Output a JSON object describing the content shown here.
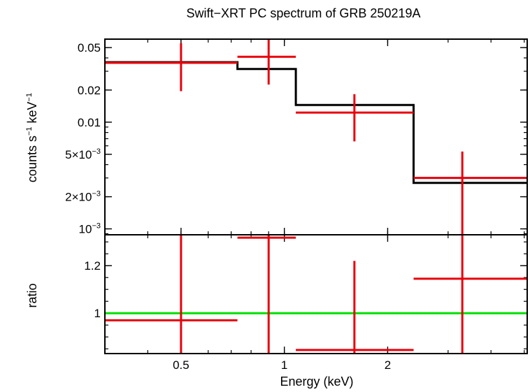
{
  "chart_data": {
    "title": "Swift−XRT PC spectrum of GRB 250219A",
    "xlabel": "Energy (keV)",
    "x_scale": "log",
    "xlim": [
      0.3,
      5.1
    ],
    "x_ticks": [
      {
        "value": 0.5,
        "label": "0.5"
      },
      {
        "value": 1,
        "label": "1"
      },
      {
        "value": 2,
        "label": "2"
      }
    ],
    "panels": [
      {
        "name": "spectrum",
        "type": "step-errorbar",
        "ylabel": {
          "base": "counts s",
          "exp1": "−1",
          "mid": " keV",
          "exp2": "−1"
        },
        "y_scale": "log",
        "ylim": [
          0.00088,
          0.06
        ],
        "y_ticks": [
          {
            "value": 0.05,
            "base": "0.05",
            "exp": ""
          },
          {
            "value": 0.02,
            "base": "0.02",
            "exp": ""
          },
          {
            "value": 0.01,
            "base": "0.01",
            "exp": ""
          },
          {
            "value": 0.005,
            "base": "5×10",
            "exp": "−3"
          },
          {
            "value": 0.002,
            "base": "2×10",
            "exp": "−3"
          },
          {
            "value": 0.001,
            "base": "10",
            "exp": "−3"
          }
        ],
        "data": [
          {
            "x_lo": 0.3,
            "x_hi": 0.73,
            "x": 0.5,
            "y": 0.036,
            "y_lo": 0.0195,
            "y_hi": 0.055
          },
          {
            "x_lo": 0.73,
            "x_hi": 1.08,
            "x": 0.9,
            "y": 0.041,
            "y_lo": 0.0225,
            "y_hi": 0.062
          },
          {
            "x_lo": 1.08,
            "x_hi": 2.38,
            "x": 1.6,
            "y": 0.0123,
            "y_lo": 0.0066,
            "y_hi": 0.0183
          },
          {
            "x_lo": 2.38,
            "x_hi": 5.1,
            "x": 3.3,
            "y": 0.003,
            "y_lo": 0.00088,
            "y_hi": 0.0053
          }
        ],
        "model": [
          {
            "x_lo": 0.3,
            "x_hi": 0.73,
            "y": 0.0365
          },
          {
            "x_lo": 0.73,
            "x_hi": 1.08,
            "y": 0.0315
          },
          {
            "x_lo": 1.08,
            "x_hi": 2.38,
            "y": 0.0145
          },
          {
            "x_lo": 2.38,
            "x_hi": 5.1,
            "y": 0.0027
          }
        ]
      },
      {
        "name": "ratio",
        "type": "errorbar",
        "ylabel": "ratio",
        "y_scale": "linear",
        "ylim": [
          0.83,
          1.33
        ],
        "y_ticks": [
          {
            "value": 1.2,
            "label": "1.2"
          },
          {
            "value": 1,
            "label": "1"
          }
        ],
        "reference_line": 1,
        "data": [
          {
            "x_lo": 0.3,
            "x_hi": 0.73,
            "x": 0.5,
            "y": 0.97,
            "y_lo": 0.83,
            "y_hi": 1.33
          },
          {
            "x_lo": 0.73,
            "x_hi": 1.08,
            "x": 0.9,
            "y": 1.318,
            "y_lo": 0.83,
            "y_hi": 1.33
          },
          {
            "x_lo": 1.08,
            "x_hi": 2.38,
            "x": 1.6,
            "y": 0.845,
            "y_lo": 0.83,
            "y_hi": 1.22
          },
          {
            "x_lo": 2.38,
            "x_hi": 5.1,
            "x": 3.3,
            "y": 1.145,
            "y_lo": 0.83,
            "y_hi": 1.33
          }
        ]
      }
    ],
    "colors": {
      "data": "#e8000b",
      "model": "#000000",
      "reference": "#00e000",
      "axes": "#000000"
    }
  }
}
